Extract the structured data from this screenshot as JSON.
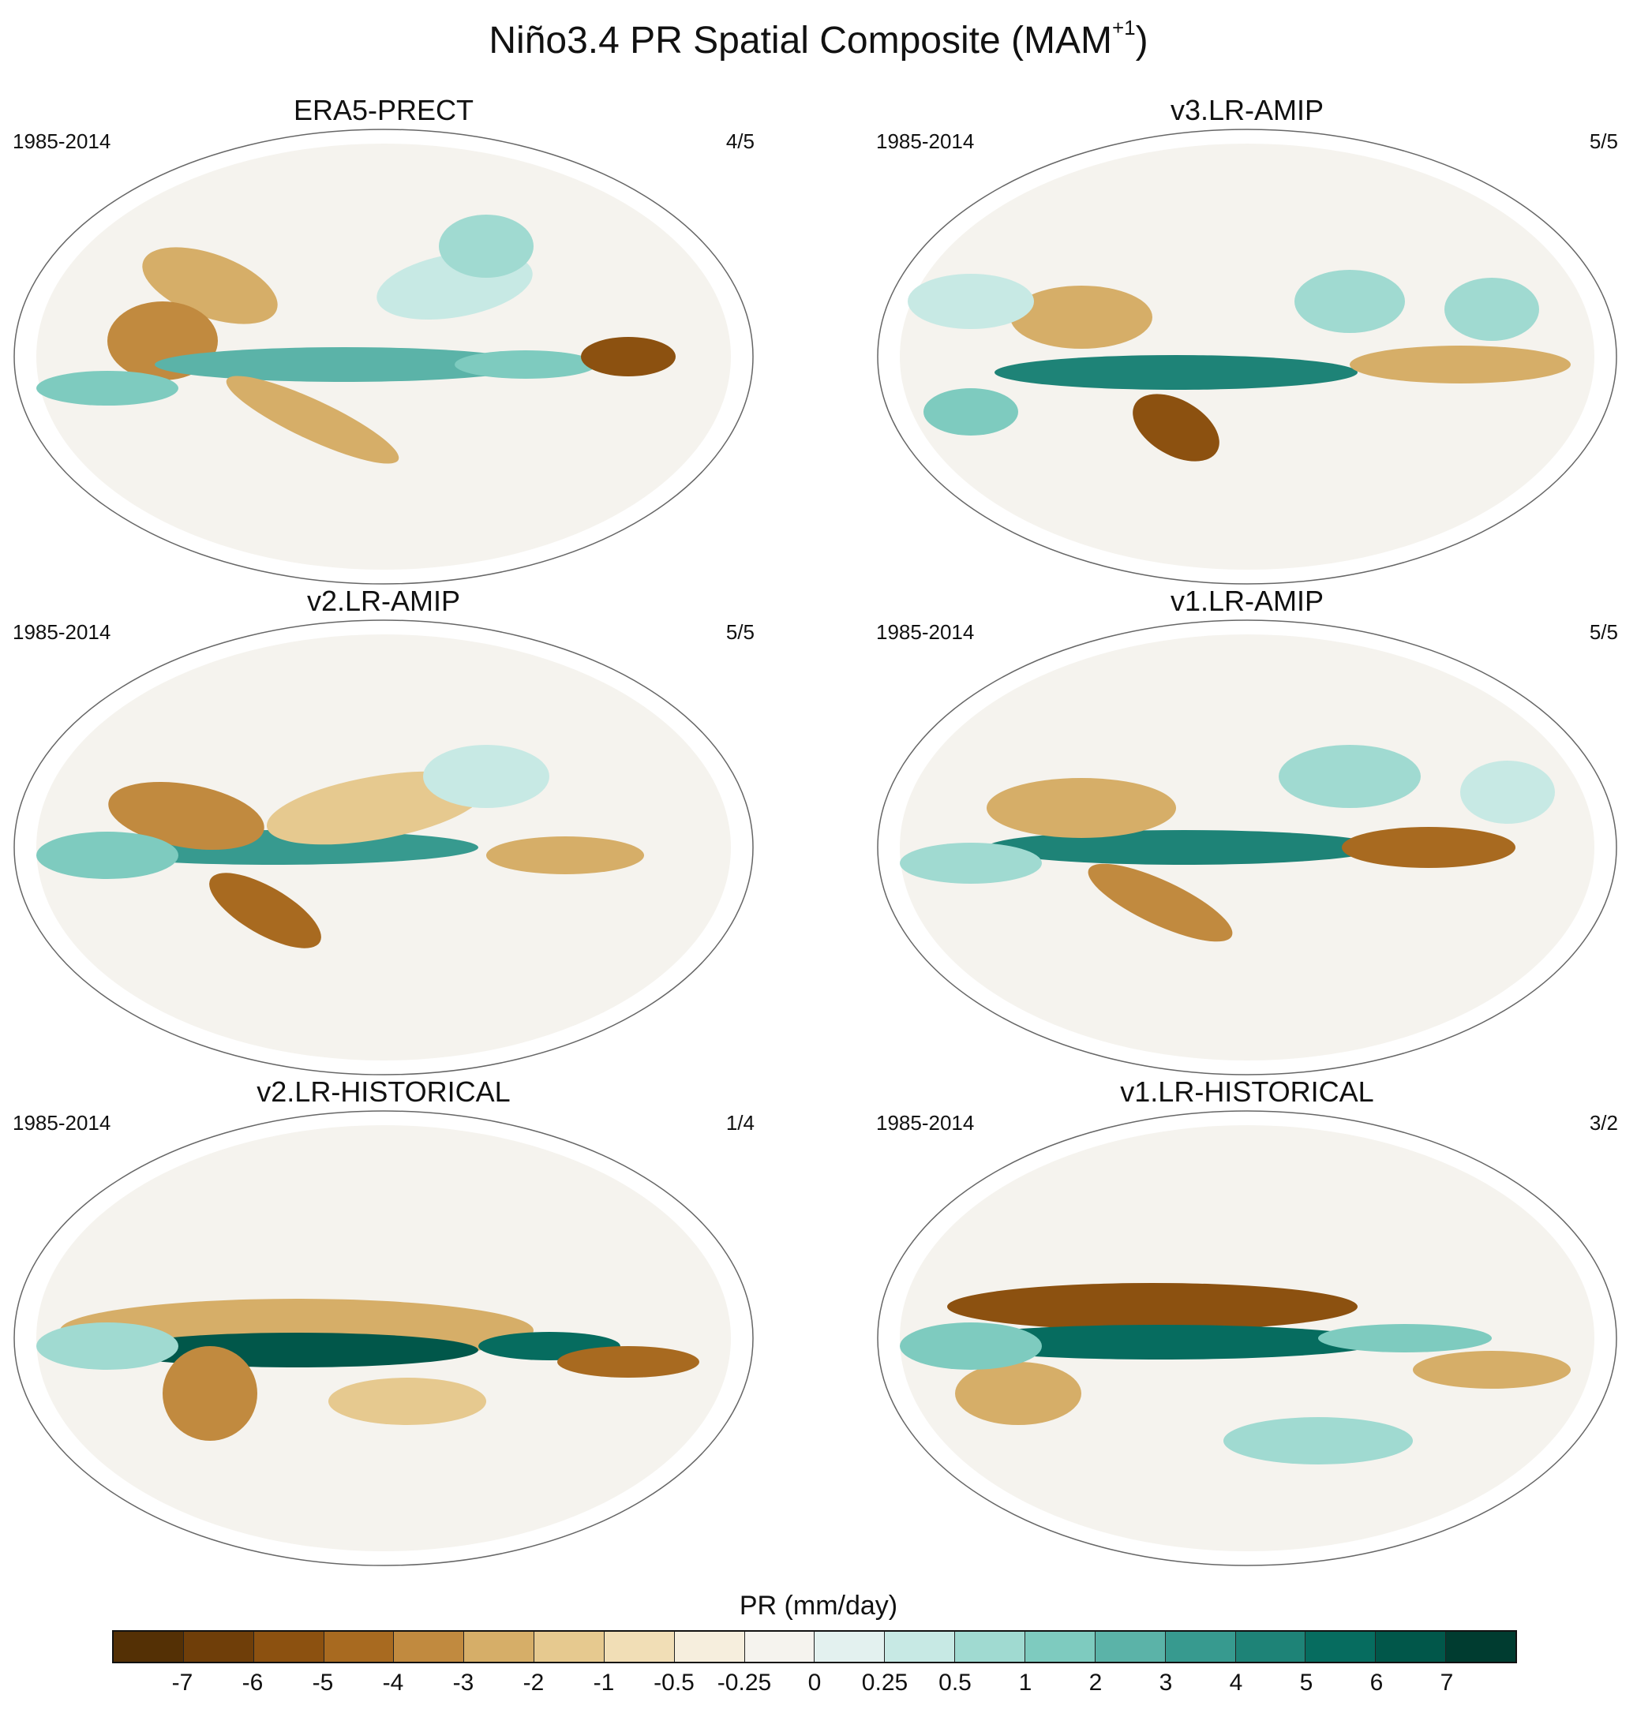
{
  "figure": {
    "title_main": "Niño3.4 PR Spatial Composite (MAM",
    "title_sup": "+1",
    "title_close": ")"
  },
  "panels": [
    {
      "title": "ERA5-PRECT",
      "years": "1985-2014",
      "count": "4/5"
    },
    {
      "title": "v3.LR-AMIP",
      "years": "1985-2014",
      "count": "5/5"
    },
    {
      "title": "v2.LR-AMIP",
      "years": "1985-2014",
      "count": "5/5"
    },
    {
      "title": "v1.LR-AMIP",
      "years": "1985-2014",
      "count": "5/5"
    },
    {
      "title": "v2.LR-HISTORICAL",
      "years": "1985-2014",
      "count": "1/4"
    },
    {
      "title": "v1.LR-HISTORICAL",
      "years": "1985-2014",
      "count": "3/2"
    }
  ],
  "colorbar": {
    "label": "PR (mm/day)",
    "colors": [
      "#543005",
      "#6f3e09",
      "#8c5110",
      "#a86a20",
      "#c18a3f",
      "#d6ae68",
      "#e6c98f",
      "#f1deb6",
      "#f6eedd",
      "#f5f3ee",
      "#e3f1ef",
      "#c7e9e4",
      "#a0dad1",
      "#7ecbbf",
      "#5bb3a8",
      "#379a8f",
      "#1e8377",
      "#066c5f",
      "#01574a",
      "#003c30"
    ],
    "ticks": [
      "-7",
      "-6",
      "-5",
      "-4",
      "-3",
      "-2",
      "-1",
      "-0.5",
      "-0.25",
      "0",
      "0.25",
      "0.5",
      "1",
      "2",
      "3",
      "4",
      "5",
      "6",
      "7"
    ]
  }
}
